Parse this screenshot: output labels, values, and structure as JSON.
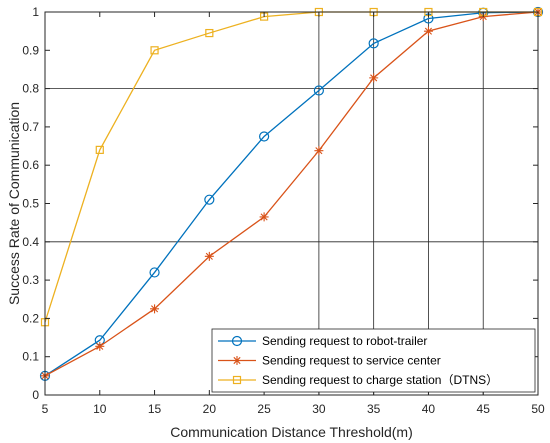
{
  "chart_data": {
    "type": "line",
    "xlabel": "Communication Distance Threshold(m)",
    "ylabel": "Success Rate of Communication",
    "xlim": [
      5,
      50
    ],
    "ylim": [
      0,
      1
    ],
    "xticks": [
      5,
      10,
      15,
      20,
      25,
      30,
      35,
      40,
      45,
      50
    ],
    "yticks": [
      0,
      0.1,
      0.2,
      0.3,
      0.4,
      0.5,
      0.6,
      0.7,
      0.8,
      0.9,
      1
    ],
    "ytick_labels": [
      "0",
      "0.1",
      "0.2",
      "0.3",
      "0.4",
      "0.5",
      "0.6",
      "0.7",
      "0.8",
      "0.9",
      "1"
    ],
    "vertical_gridlines_x": [
      30,
      35,
      40,
      45
    ],
    "horizontal_gridlines_y": [
      0.4,
      0.8
    ],
    "legend_position": "bottom-right",
    "x": [
      5,
      10,
      15,
      20,
      25,
      30,
      35,
      40,
      45,
      50
    ],
    "series": [
      {
        "name": "Sending request to robot-trailer",
        "color": "#0072BD",
        "marker": "circle",
        "values": [
          0.05,
          0.143,
          0.32,
          0.51,
          0.675,
          0.795,
          0.918,
          0.983,
          0.998,
          1.0
        ]
      },
      {
        "name": "Sending request to service center",
        "color": "#D95319",
        "marker": "star",
        "values": [
          0.05,
          0.127,
          0.225,
          0.362,
          0.465,
          0.638,
          0.828,
          0.95,
          0.988,
          1.0
        ]
      },
      {
        "name": "Sending request to charge station（DTNS）",
        "color": "#EDB120",
        "marker": "square",
        "values": [
          0.19,
          0.64,
          0.9,
          0.945,
          0.988,
          1.0,
          1.0,
          1.0,
          1.0,
          1.0
        ]
      }
    ]
  }
}
